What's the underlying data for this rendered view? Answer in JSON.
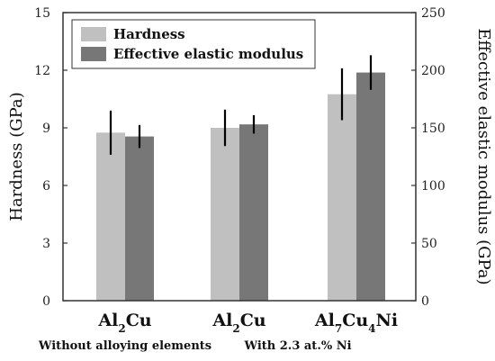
{
  "chart_data": {
    "type": "bar",
    "categories": [
      {
        "main": "Al",
        "sub1": "2",
        "mid": "Cu",
        "sub2": "",
        "tail": ""
      },
      {
        "main": "Al",
        "sub1": "2",
        "mid": "Cu",
        "sub2": "",
        "tail": ""
      },
      {
        "main": "Al",
        "sub1": "7",
        "mid": "Cu",
        "sub2": "4",
        "tail": "Ni"
      }
    ],
    "category_labels": [
      "Al2Cu",
      "Al2Cu",
      "Al7Cu4Ni"
    ],
    "groups": [
      {
        "label": "Without alloying elements",
        "categories": [
          0
        ]
      },
      {
        "label": "With 2.3 at.% Ni",
        "categories": [
          1,
          2
        ]
      }
    ],
    "series": [
      {
        "name": "Hardness",
        "axis": "left",
        "color": "#c0c0c0",
        "values": [
          8.75,
          9.0,
          10.75
        ],
        "errors": [
          1.15,
          0.95,
          1.35
        ]
      },
      {
        "name": "Effective elastic modulus",
        "axis": "right",
        "color": "#777777",
        "values": [
          142.5,
          153.0,
          198.0
        ],
        "errors": [
          10.0,
          8.0,
          15.0
        ]
      }
    ],
    "ylabel": "Hardness (GPa)",
    "y2label": "Effective elastic modulus (GPa)",
    "ylim": [
      0,
      15
    ],
    "y2lim": [
      0,
      250
    ],
    "yticks": [
      0,
      3,
      6,
      9,
      12,
      15
    ],
    "y2ticks": [
      0,
      50,
      100,
      150,
      200,
      250
    ],
    "legend_position": "top-left",
    "grid": false
  }
}
